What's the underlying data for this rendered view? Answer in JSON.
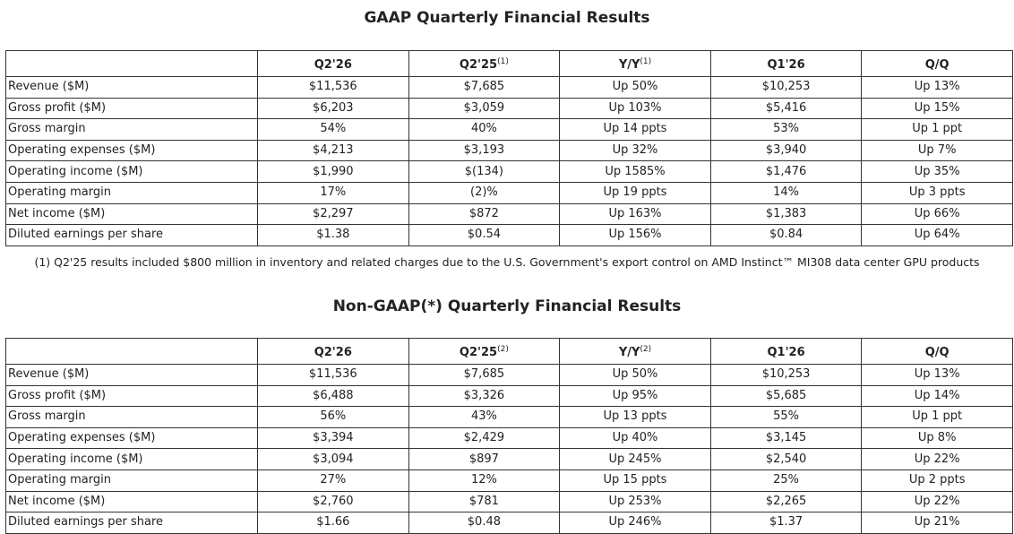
{
  "gaap": {
    "title": "GAAP Quarterly Financial Results",
    "columns": [
      {
        "label": "",
        "sup": ""
      },
      {
        "label": "Q2'26",
        "sup": ""
      },
      {
        "label": "Q2'25",
        "sup": "(1)"
      },
      {
        "label": "Y/Y",
        "sup": "(1)"
      },
      {
        "label": "Q1'26",
        "sup": ""
      },
      {
        "label": "Q/Q",
        "sup": ""
      }
    ],
    "rows": [
      [
        "Revenue ($M)",
        "$11,536",
        "$7,685",
        "Up 50%",
        "$10,253",
        "Up 13%"
      ],
      [
        "Gross profit ($M)",
        "$6,203",
        "$3,059",
        "Up 103%",
        "$5,416",
        "Up 15%"
      ],
      [
        "Gross margin",
        "54%",
        "40%",
        "Up 14 ppts",
        "53%",
        "Up 1 ppt"
      ],
      [
        "Operating expenses ($M)",
        "$4,213",
        "$3,193",
        "Up 32%",
        "$3,940",
        "Up 7%"
      ],
      [
        "Operating income ($M)",
        "$1,990",
        "$(134)",
        "Up 1585%",
        "$1,476",
        "Up 35%"
      ],
      [
        "Operating margin",
        "17%",
        "(2)%",
        "Up 19 ppts",
        "14%",
        "Up 3 ppts"
      ],
      [
        "Net income ($M)",
        "$2,297",
        "$872",
        "Up 163%",
        "$1,383",
        "Up 66%"
      ],
      [
        "Diluted earnings per share",
        "$1.38",
        "$0.54",
        "Up 156%",
        "$0.84",
        "Up 64%"
      ]
    ],
    "footnote": "(1) Q2'25 results included $800 million in inventory and related charges due to the U.S. Government's export control on AMD Instinct™ MI308 data center GPU products"
  },
  "nongaap": {
    "title": "Non-GAAP(*) Quarterly Financial Results",
    "columns": [
      {
        "label": "",
        "sup": ""
      },
      {
        "label": "Q2'26",
        "sup": ""
      },
      {
        "label": "Q2'25",
        "sup": "(2)"
      },
      {
        "label": "Y/Y",
        "sup": "(2)"
      },
      {
        "label": "Q1'26",
        "sup": ""
      },
      {
        "label": "Q/Q",
        "sup": ""
      }
    ],
    "rows": [
      [
        "Revenue ($M)",
        "$11,536",
        "$7,685",
        "Up 50%",
        "$10,253",
        "Up 13%"
      ],
      [
        "Gross profit ($M)",
        "$6,488",
        "$3,326",
        "Up 95%",
        "$5,685",
        "Up 14%"
      ],
      [
        "Gross margin",
        "56%",
        "43%",
        "Up 13 ppts",
        "55%",
        "Up 1 ppt"
      ],
      [
        "Operating expenses ($M)",
        "$3,394",
        "$2,429",
        "Up 40%",
        "$3,145",
        "Up 8%"
      ],
      [
        "Operating income ($M)",
        "$3,094",
        "$897",
        "Up 245%",
        "$2,540",
        "Up 22%"
      ],
      [
        "Operating margin",
        "27%",
        "12%",
        "Up 15 ppts",
        "25%",
        "Up 2 ppts"
      ],
      [
        "Net income ($M)",
        "$2,760",
        "$781",
        "Up 253%",
        "$2,265",
        "Up 22%"
      ],
      [
        "Diluted earnings per share",
        "$1.66",
        "$0.48",
        "Up 246%",
        "$1.37",
        "Up 21%"
      ]
    ]
  }
}
